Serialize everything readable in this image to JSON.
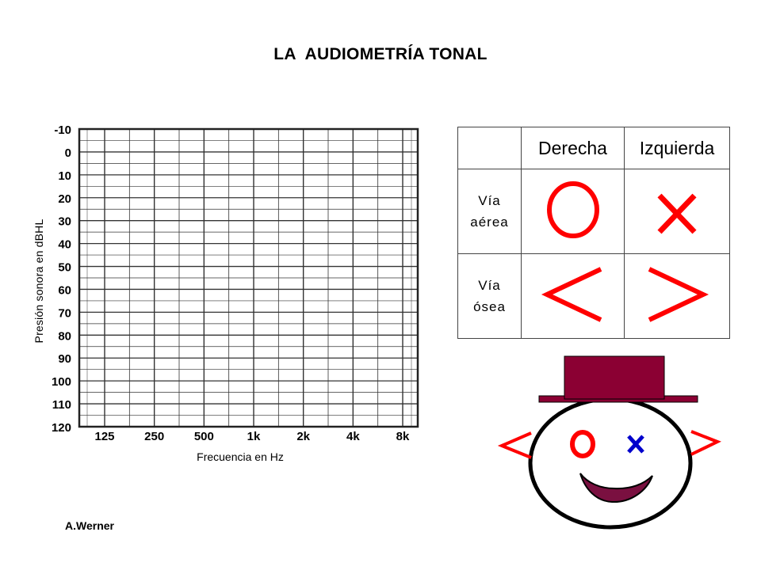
{
  "title": "LA  AUDIOMETRÍA TONAL",
  "author": "A.Werner",
  "audiogram": {
    "y_label": "Presión sonora en  dBHL",
    "x_label": "Frecuencia en Hz",
    "y_ticks": [
      "-10",
      "0",
      "10",
      "20",
      "30",
      "40",
      "50",
      "60",
      "70",
      "80",
      "90",
      "100",
      "110",
      "120"
    ],
    "x_ticks": [
      "125",
      "250",
      "500",
      "1k",
      "2k",
      "4k",
      "8k"
    ],
    "grid": true
  },
  "legend": {
    "col_right": "Derecha",
    "col_left": "Izquierda",
    "row_air": [
      "Vía",
      "aérea"
    ],
    "row_bone": [
      "Vía",
      "ósea"
    ],
    "symbols": {
      "air_right": "O",
      "air_left": "X",
      "bone_right": "<",
      "bone_left": ">"
    },
    "symbol_color": "#ff0000"
  },
  "face": {
    "left_ear": "<",
    "right_ear": ">",
    "left_eye": "o",
    "right_eye": "x",
    "ear_color": "#ff0000",
    "eye_left_color": "#ff0000",
    "eye_right_color": "#0000cc",
    "hat_color": "#8b0033",
    "mouth_color": "#7a1040"
  }
}
